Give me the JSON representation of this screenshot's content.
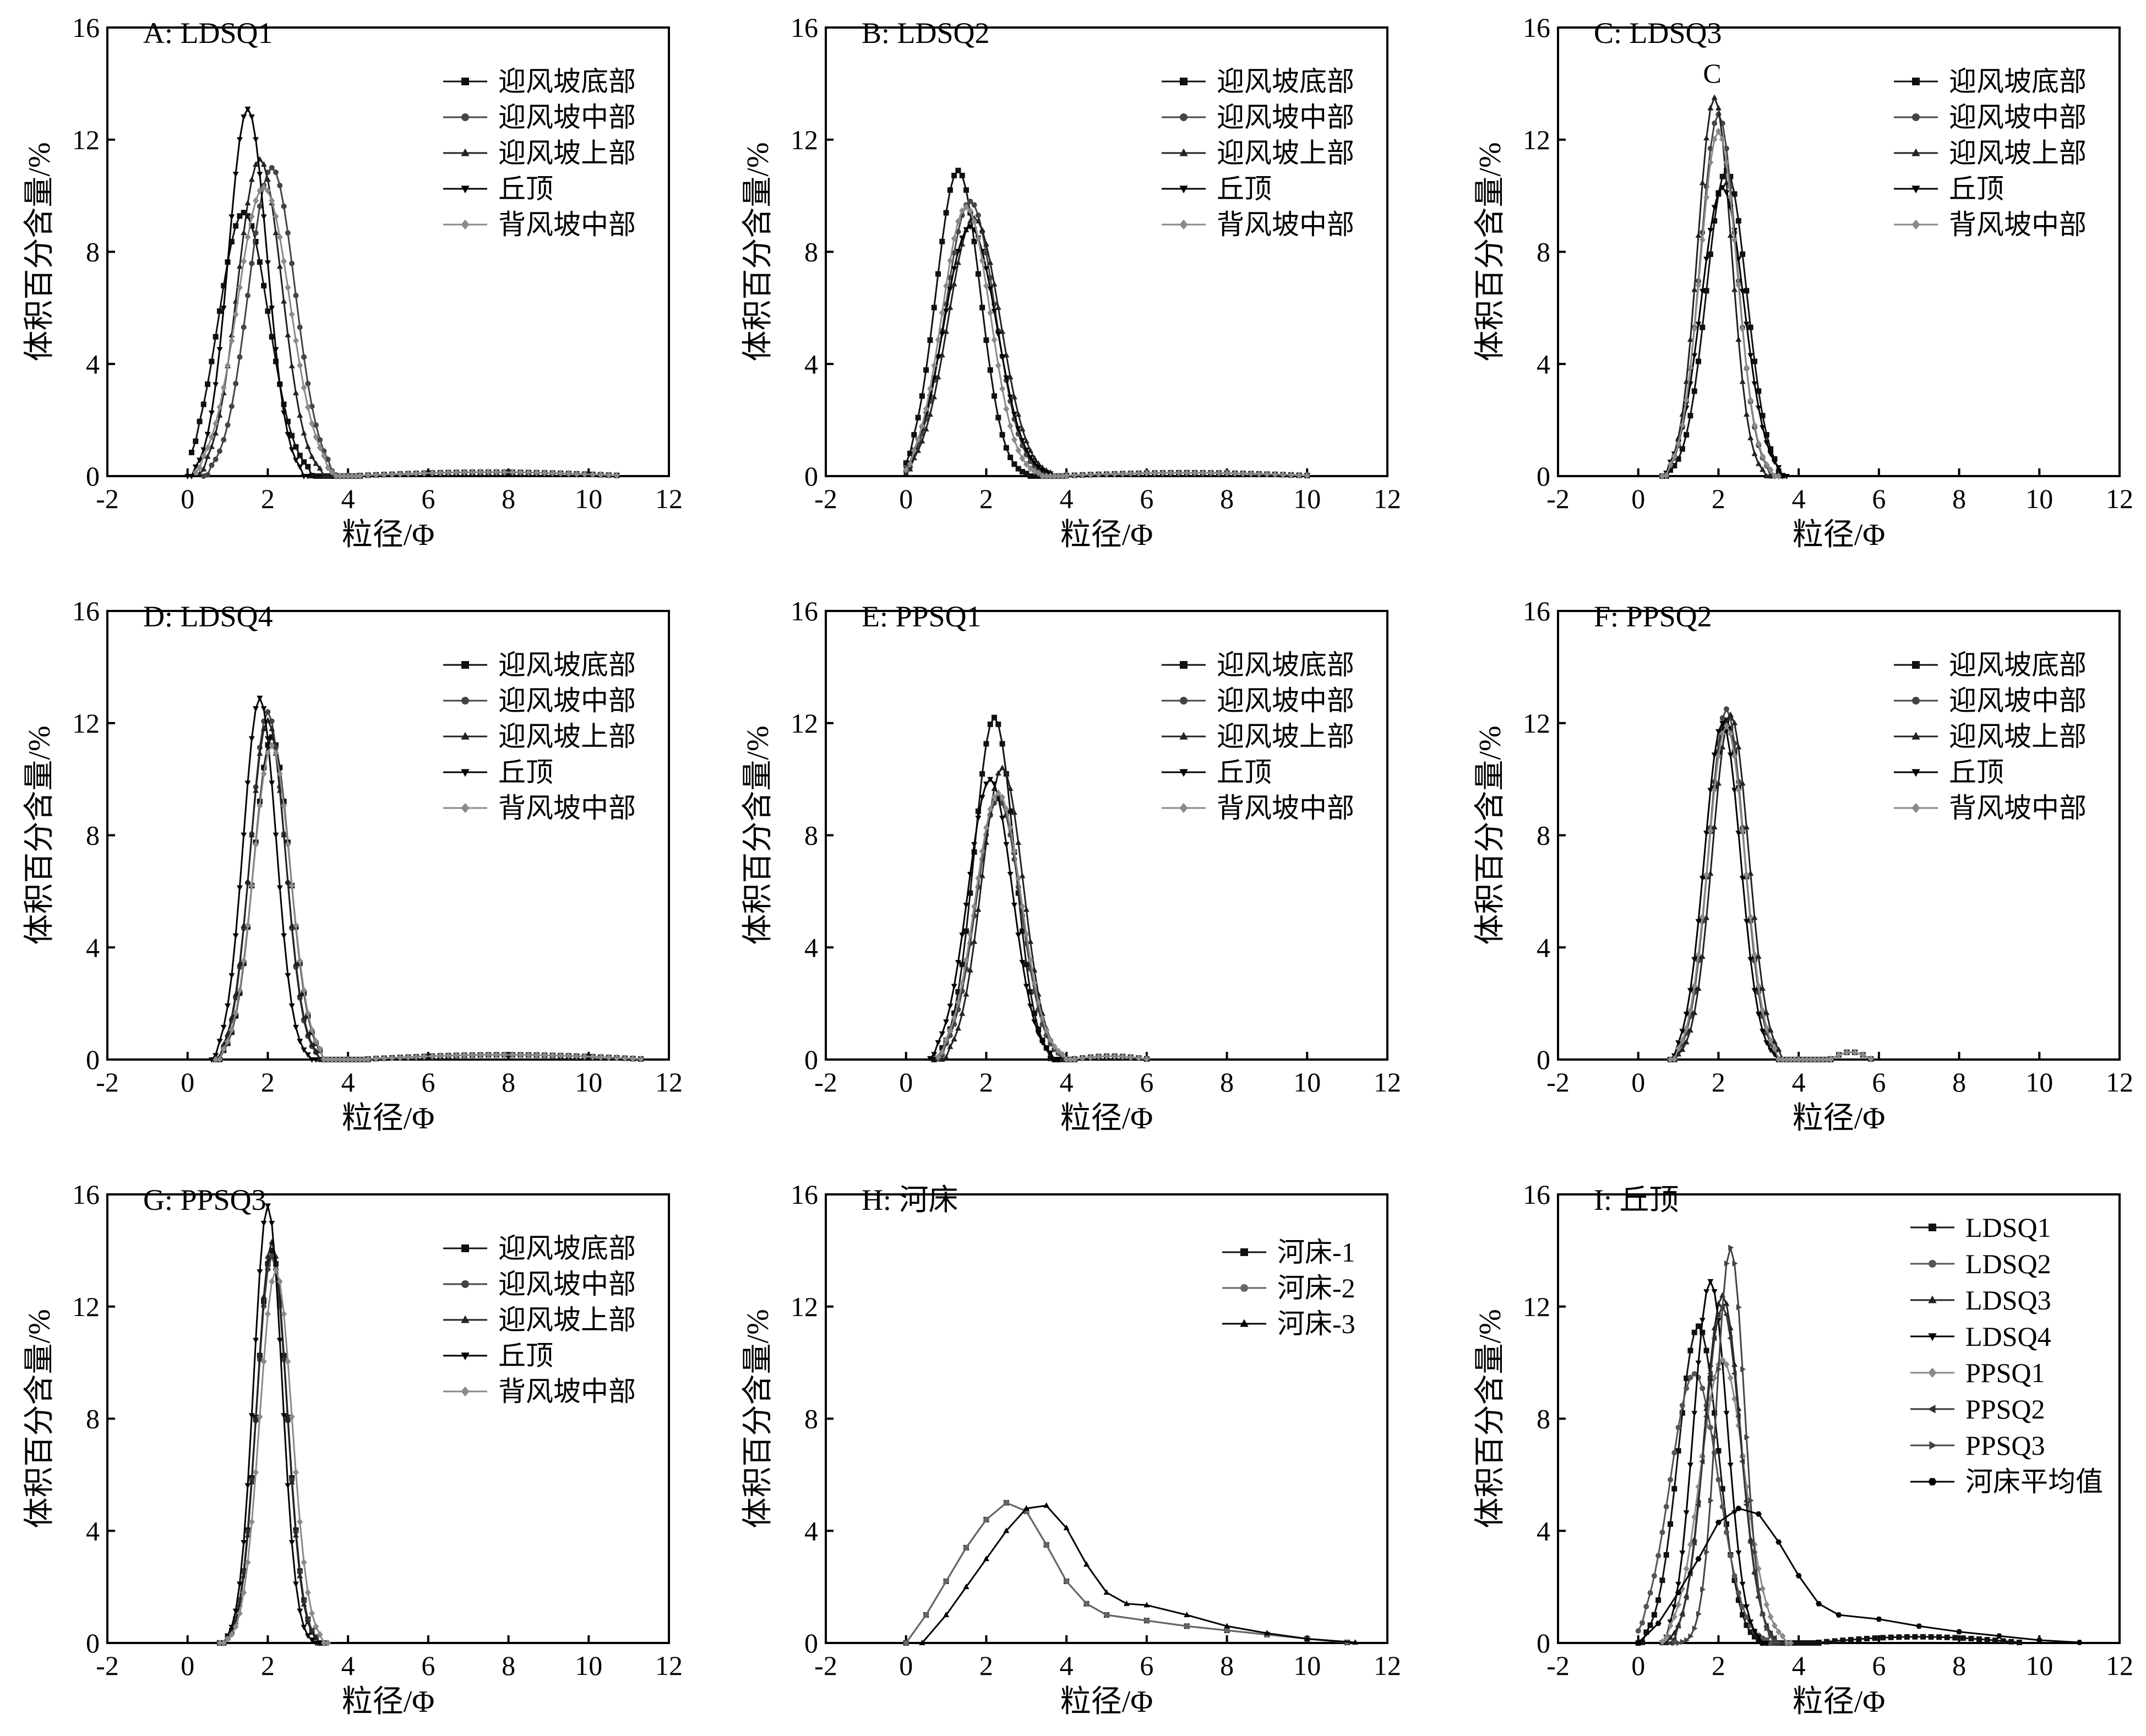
{
  "figure": {
    "x_label": "粒径/Φ",
    "y_label": "体积百分含量/%"
  },
  "chart_data": [
    {
      "id": "A",
      "type": "line",
      "title": "A: LDSQ1",
      "note": "",
      "xlabel": "粒径/Φ",
      "ylabel": "体积百分含量/%",
      "xlim": [
        -2,
        12
      ],
      "ylim": [
        0,
        16
      ],
      "xticks": [
        -2,
        0,
        2,
        4,
        6,
        8,
        10,
        12
      ],
      "yticks": [
        0,
        4,
        8,
        12,
        16
      ],
      "legend_position": "top-right",
      "series": [
        {
          "name": "迎风坡底部",
          "color": "#111111",
          "marker": "square",
          "mu": 1.4,
          "sigma": 0.62,
          "peak": 9.4,
          "xmin": 0.1,
          "xmax": 3.2
        },
        {
          "name": "迎风坡中部",
          "color": "#444444",
          "marker": "circle",
          "mu": 2.1,
          "sigma": 0.58,
          "peak": 11.0,
          "xmin": 0.4,
          "xmax": 3.7
        },
        {
          "name": "迎风坡上部",
          "color": "#222222",
          "marker": "triangle-up",
          "mu": 1.8,
          "sigma": 0.55,
          "peak": 11.3,
          "xmin": 0.3,
          "xmax": 3.5
        },
        {
          "name": "丘顶",
          "color": "#000000",
          "marker": "triangle-down",
          "mu": 1.5,
          "sigma": 0.48,
          "peak": 13.1,
          "xmin": 0.0,
          "xmax": 3.0
        },
        {
          "name": "背风坡中部",
          "color": "#8a8a8a",
          "marker": "diamond",
          "mu": 1.9,
          "sigma": 0.65,
          "peak": 10.3,
          "xmin": 0.2,
          "xmax": 3.6
        }
      ],
      "tail": {
        "xmin": 4.3,
        "xmax": 10.8,
        "level": 0.12
      }
    },
    {
      "id": "B",
      "type": "line",
      "title": "B: LDSQ2",
      "note": "",
      "xlabel": "粒径/Φ",
      "ylabel": "体积百分含量/%",
      "xlim": [
        -2,
        12
      ],
      "ylim": [
        0,
        16
      ],
      "xticks": [
        -2,
        0,
        2,
        4,
        6,
        8,
        10,
        12
      ],
      "yticks": [
        0,
        4,
        8,
        12,
        16
      ],
      "legend_position": "top-right",
      "series": [
        {
          "name": "迎风坡底部",
          "color": "#111111",
          "marker": "square",
          "mu": 1.3,
          "sigma": 0.55,
          "peak": 10.9,
          "xmin": 0.0,
          "xmax": 3.2
        },
        {
          "name": "迎风坡中部",
          "color": "#444444",
          "marker": "circle",
          "mu": 1.6,
          "sigma": 0.62,
          "peak": 9.8,
          "xmin": 0.0,
          "xmax": 3.6
        },
        {
          "name": "迎风坡上部",
          "color": "#222222",
          "marker": "triangle-up",
          "mu": 1.7,
          "sigma": 0.65,
          "peak": 9.2,
          "xmin": 0.0,
          "xmax": 3.8
        },
        {
          "name": "丘顶",
          "color": "#000000",
          "marker": "triangle-down",
          "mu": 1.6,
          "sigma": 0.66,
          "peak": 8.9,
          "xmin": 0.0,
          "xmax": 3.8
        },
        {
          "name": "背风坡中部",
          "color": "#8a8a8a",
          "marker": "diamond",
          "mu": 1.5,
          "sigma": 0.6,
          "peak": 9.6,
          "xmin": 0.0,
          "xmax": 3.5
        }
      ],
      "tail": {
        "xmin": 4.0,
        "xmax": 10.0,
        "level": 0.1
      }
    },
    {
      "id": "C",
      "type": "line",
      "title": "C: LDSQ3",
      "note": "C",
      "xlabel": "粒径/Φ",
      "ylabel": "体积百分含量/%",
      "xlim": [
        -2,
        12
      ],
      "ylim": [
        0,
        16
      ],
      "xticks": [
        -2,
        0,
        2,
        4,
        6,
        8,
        10,
        12
      ],
      "yticks": [
        0,
        4,
        8,
        12,
        16
      ],
      "legend_position": "top-right",
      "series": [
        {
          "name": "迎风坡底部",
          "color": "#111111",
          "marker": "square",
          "mu": 2.2,
          "sigma": 0.5,
          "peak": 10.9,
          "xmin": 0.6,
          "xmax": 3.6
        },
        {
          "name": "迎风坡中部",
          "color": "#444444",
          "marker": "circle",
          "mu": 2.0,
          "sigma": 0.45,
          "peak": 12.9,
          "xmin": 0.6,
          "xmax": 3.4
        },
        {
          "name": "迎风坡上部",
          "color": "#222222",
          "marker": "triangle-up",
          "mu": 1.9,
          "sigma": 0.42,
          "peak": 13.5,
          "xmin": 0.6,
          "xmax": 3.3
        },
        {
          "name": "丘顶",
          "color": "#000000",
          "marker": "triangle-down",
          "mu": 2.1,
          "sigma": 0.53,
          "peak": 10.3,
          "xmin": 0.6,
          "xmax": 3.7
        },
        {
          "name": "背风坡中部",
          "color": "#8a8a8a",
          "marker": "diamond",
          "mu": 2.0,
          "sigma": 0.46,
          "peak": 12.3,
          "xmin": 0.6,
          "xmax": 3.5
        }
      ],
      "tail": null
    },
    {
      "id": "D",
      "type": "line",
      "title": "D: LDSQ4",
      "note": "",
      "xlabel": "粒径/Φ",
      "ylabel": "体积百分含量/%",
      "xlim": [
        -2,
        12
      ],
      "ylim": [
        0,
        16
      ],
      "xticks": [
        -2,
        0,
        2,
        4,
        6,
        8,
        10,
        12
      ],
      "yticks": [
        0,
        4,
        8,
        12,
        16
      ],
      "legend_position": "top-right",
      "series": [
        {
          "name": "迎风坡底部",
          "color": "#111111",
          "marker": "square",
          "mu": 2.1,
          "sigma": 0.45,
          "peak": 11.5,
          "xmin": 0.7,
          "xmax": 3.5
        },
        {
          "name": "迎风坡中部",
          "color": "#444444",
          "marker": "circle",
          "mu": 2.0,
          "sigma": 0.43,
          "peak": 12.4,
          "xmin": 0.7,
          "xmax": 3.4
        },
        {
          "name": "迎风坡上部",
          "color": "#222222",
          "marker": "triangle-up",
          "mu": 2.0,
          "sigma": 0.44,
          "peak": 12.1,
          "xmin": 0.7,
          "xmax": 3.4
        },
        {
          "name": "丘顶",
          "color": "#000000",
          "marker": "triangle-down",
          "mu": 1.8,
          "sigma": 0.41,
          "peak": 12.9,
          "xmin": 0.6,
          "xmax": 3.2
        },
        {
          "name": "背风坡中部",
          "color": "#8a8a8a",
          "marker": "diamond",
          "mu": 2.1,
          "sigma": 0.46,
          "peak": 11.2,
          "xmin": 0.7,
          "xmax": 3.5
        }
      ],
      "tail": {
        "xmin": 4.5,
        "xmax": 11.3,
        "level": 0.15
      }
    },
    {
      "id": "E",
      "type": "line",
      "title": "E: PPSQ1",
      "note": "",
      "xlabel": "粒径/Φ",
      "ylabel": "体积百分含量/%",
      "xlim": [
        -2,
        12
      ],
      "ylim": [
        0,
        16
      ],
      "xticks": [
        -2,
        0,
        2,
        4,
        6,
        8,
        10,
        12
      ],
      "yticks": [
        0,
        4,
        8,
        12,
        16
      ],
      "legend_position": "top-right",
      "series": [
        {
          "name": "迎风坡底部",
          "color": "#111111",
          "marker": "square",
          "mu": 2.2,
          "sigma": 0.5,
          "peak": 12.2,
          "xmin": 0.7,
          "xmax": 3.7
        },
        {
          "name": "迎风坡中部",
          "color": "#444444",
          "marker": "circle",
          "mu": 2.3,
          "sigma": 0.55,
          "peak": 9.3,
          "xmin": 0.8,
          "xmax": 4.0
        },
        {
          "name": "迎风坡上部",
          "color": "#222222",
          "marker": "triangle-up",
          "mu": 2.4,
          "sigma": 0.52,
          "peak": 10.4,
          "xmin": 0.9,
          "xmax": 4.0
        },
        {
          "name": "丘顶",
          "color": "#000000",
          "marker": "triangle-down",
          "mu": 2.1,
          "sigma": 0.55,
          "peak": 10.0,
          "xmin": 0.6,
          "xmax": 3.8
        },
        {
          "name": "背风坡中部",
          "color": "#8a8a8a",
          "marker": "diamond",
          "mu": 2.3,
          "sigma": 0.57,
          "peak": 9.5,
          "xmin": 0.8,
          "xmax": 4.1
        }
      ],
      "tail": {
        "xmin": 4.2,
        "xmax": 6.0,
        "level": 0.1
      }
    },
    {
      "id": "F",
      "type": "line",
      "title": "F: PPSQ2",
      "note": "",
      "xlabel": "粒径/Φ",
      "ylabel": "体积百分含量/%",
      "xlim": [
        -2,
        12
      ],
      "ylim": [
        0,
        16
      ],
      "xticks": [
        -2,
        0,
        2,
        4,
        6,
        8,
        10,
        12
      ],
      "yticks": [
        0,
        4,
        8,
        12,
        16
      ],
      "legend_position": "top-right",
      "series": [
        {
          "name": "迎风坡底部",
          "color": "#111111",
          "marker": "square",
          "mu": 2.2,
          "sigma": 0.45,
          "peak": 12.1,
          "xmin": 0.8,
          "xmax": 3.6
        },
        {
          "name": "迎风坡中部",
          "color": "#444444",
          "marker": "circle",
          "mu": 2.2,
          "sigma": 0.44,
          "peak": 12.5,
          "xmin": 0.8,
          "xmax": 3.6
        },
        {
          "name": "迎风坡上部",
          "color": "#222222",
          "marker": "triangle-up",
          "mu": 2.3,
          "sigma": 0.45,
          "peak": 12.3,
          "xmin": 0.8,
          "xmax": 3.7
        },
        {
          "name": "丘顶",
          "color": "#000000",
          "marker": "triangle-down",
          "mu": 2.1,
          "sigma": 0.45,
          "peak": 12.0,
          "xmin": 0.8,
          "xmax": 3.6
        },
        {
          "name": "背风坡中部",
          "color": "#8a8a8a",
          "marker": "diamond",
          "mu": 2.2,
          "sigma": 0.46,
          "peak": 11.9,
          "xmin": 0.8,
          "xmax": 3.6
        }
      ],
      "tail": {
        "xmin": 4.8,
        "xmax": 5.8,
        "level": 0.25
      }
    },
    {
      "id": "G",
      "type": "line",
      "title": "G: PPSQ3",
      "note": "",
      "xlabel": "粒径/Φ",
      "ylabel": "体积百分含量/%",
      "xlim": [
        -2,
        12
      ],
      "ylim": [
        0,
        16
      ],
      "xticks": [
        -2,
        0,
        2,
        4,
        6,
        8,
        10,
        12
      ],
      "yticks": [
        0,
        4,
        8,
        12,
        16
      ],
      "legend_position": "top-right",
      "series": [
        {
          "name": "迎风坡底部",
          "color": "#111111",
          "marker": "square",
          "mu": 2.1,
          "sigma": 0.38,
          "peak": 14.0,
          "xmin": 0.8,
          "xmax": 3.4
        },
        {
          "name": "迎风坡中部",
          "color": "#444444",
          "marker": "circle",
          "mu": 2.1,
          "sigma": 0.38,
          "peak": 13.8,
          "xmin": 0.8,
          "xmax": 3.4
        },
        {
          "name": "迎风坡上部",
          "color": "#222222",
          "marker": "triangle-up",
          "mu": 2.1,
          "sigma": 0.37,
          "peak": 14.3,
          "xmin": 0.8,
          "xmax": 3.4
        },
        {
          "name": "丘顶",
          "color": "#000000",
          "marker": "triangle-down",
          "mu": 2.0,
          "sigma": 0.35,
          "peak": 15.6,
          "xmin": 0.8,
          "xmax": 3.3
        },
        {
          "name": "背风坡中部",
          "color": "#8a8a8a",
          "marker": "diamond",
          "mu": 2.2,
          "sigma": 0.4,
          "peak": 13.3,
          "xmin": 0.8,
          "xmax": 3.5
        }
      ],
      "tail": null
    },
    {
      "id": "H",
      "type": "line",
      "title": "H: 河床",
      "note": "",
      "xlabel": "粒径/Φ",
      "ylabel": "体积百分含量/%",
      "xlim": [
        -2,
        12
      ],
      "ylim": [
        0,
        16
      ],
      "xticks": [
        -2,
        0,
        2,
        4,
        6,
        8,
        10,
        12
      ],
      "yticks": [
        0,
        4,
        8,
        12,
        16
      ],
      "legend_position": "top-right",
      "series": [
        {
          "name": "河床-1",
          "color": "#111111",
          "marker": "square",
          "points": [
            [
              0.0,
              0.0
            ],
            [
              0.5,
              1.0
            ],
            [
              1.0,
              2.2
            ],
            [
              1.5,
              3.4
            ],
            [
              2.0,
              4.4
            ],
            [
              2.5,
              5.0
            ],
            [
              3.0,
              4.7
            ],
            [
              3.5,
              3.5
            ],
            [
              4.0,
              2.2
            ],
            [
              4.5,
              1.4
            ],
            [
              5.0,
              1.0
            ],
            [
              6.0,
              0.8
            ],
            [
              7.0,
              0.6
            ],
            [
              8.0,
              0.45
            ],
            [
              9.0,
              0.3
            ],
            [
              10.0,
              0.15
            ],
            [
              11.0,
              0.02
            ]
          ]
        },
        {
          "name": "河床-2",
          "color": "#666666",
          "marker": "circle",
          "points": [
            [
              0.0,
              0.0
            ],
            [
              0.5,
              1.0
            ],
            [
              1.0,
              2.2
            ],
            [
              1.5,
              3.4
            ],
            [
              2.0,
              4.4
            ],
            [
              2.5,
              5.0
            ],
            [
              3.0,
              4.7
            ],
            [
              3.5,
              3.5
            ],
            [
              4.0,
              2.2
            ],
            [
              4.5,
              1.4
            ],
            [
              5.0,
              1.0
            ],
            [
              6.0,
              0.8
            ],
            [
              7.0,
              0.6
            ],
            [
              8.0,
              0.45
            ],
            [
              9.0,
              0.3
            ],
            [
              10.0,
              0.15
            ],
            [
              11.0,
              0.02
            ]
          ]
        },
        {
          "name": "河床-3",
          "color": "#000000",
          "marker": "triangle-up",
          "points": [
            [
              0.4,
              0.0
            ],
            [
              1.0,
              1.0
            ],
            [
              1.5,
              2.0
            ],
            [
              2.0,
              3.0
            ],
            [
              2.5,
              4.0
            ],
            [
              3.0,
              4.8
            ],
            [
              3.5,
              4.9
            ],
            [
              4.0,
              4.1
            ],
            [
              4.5,
              2.8
            ],
            [
              5.0,
              1.8
            ],
            [
              5.5,
              1.4
            ],
            [
              6.0,
              1.35
            ],
            [
              7.0,
              1.0
            ],
            [
              8.0,
              0.6
            ],
            [
              9.0,
              0.35
            ],
            [
              10.0,
              0.15
            ],
            [
              11.2,
              0.02
            ]
          ]
        }
      ],
      "tail": null
    },
    {
      "id": "I",
      "type": "line",
      "title": "I: 丘顶",
      "note": "",
      "xlabel": "粒径/Φ",
      "ylabel": "体积百分含量/%",
      "xlim": [
        -2,
        12
      ],
      "ylim": [
        0,
        16
      ],
      "xticks": [
        -2,
        0,
        2,
        4,
        6,
        8,
        10,
        12
      ],
      "yticks": [
        0,
        4,
        8,
        12,
        16
      ],
      "legend_position": "top-right",
      "series": [
        {
          "name": "LDSQ1",
          "color": "#111111",
          "marker": "square",
          "mu": 1.5,
          "sigma": 0.5,
          "peak": 11.3,
          "xmin": 0.0,
          "xmax": 3.2
        },
        {
          "name": "LDSQ2",
          "color": "#555555",
          "marker": "circle",
          "mu": 1.4,
          "sigma": 0.6,
          "peak": 9.6,
          "xmin": 0.0,
          "xmax": 3.4
        },
        {
          "name": "LDSQ3",
          "color": "#222222",
          "marker": "triangle-up",
          "mu": 2.1,
          "sigma": 0.45,
          "peak": 12.4,
          "xmin": 0.6,
          "xmax": 3.5
        },
        {
          "name": "LDSQ4",
          "color": "#000000",
          "marker": "triangle-down",
          "mu": 1.8,
          "sigma": 0.42,
          "peak": 12.9,
          "xmin": 0.6,
          "xmax": 3.2
        },
        {
          "name": "PPSQ1",
          "color": "#8a8a8a",
          "marker": "diamond",
          "mu": 2.1,
          "sigma": 0.55,
          "peak": 10.1,
          "xmin": 0.6,
          "xmax": 3.8
        },
        {
          "name": "PPSQ2",
          "color": "#333333",
          "marker": "triangle-left",
          "mu": 2.1,
          "sigma": 0.45,
          "peak": 12.0,
          "xmin": 0.8,
          "xmax": 3.6
        },
        {
          "name": "PPSQ3",
          "color": "#444444",
          "marker": "triangle-right",
          "mu": 2.3,
          "sigma": 0.35,
          "peak": 14.1,
          "xmin": 0.9,
          "xmax": 3.5
        },
        {
          "name": "河床平均值",
          "color": "#000000",
          "marker": "hexagon",
          "points": [
            [
              0.0,
              0.0
            ],
            [
              0.5,
              0.7
            ],
            [
              1.0,
              1.8
            ],
            [
              1.5,
              3.0
            ],
            [
              2.0,
              4.3
            ],
            [
              2.5,
              4.8
            ],
            [
              3.0,
              4.6
            ],
            [
              3.5,
              3.6
            ],
            [
              4.0,
              2.4
            ],
            [
              4.5,
              1.4
            ],
            [
              5.0,
              1.0
            ],
            [
              6.0,
              0.85
            ],
            [
              7.0,
              0.6
            ],
            [
              8.0,
              0.4
            ],
            [
              9.0,
              0.25
            ],
            [
              10.0,
              0.1
            ],
            [
              11.0,
              0.02
            ]
          ]
        }
      ],
      "tail": {
        "xmin": 4.5,
        "xmax": 9.5,
        "level": 0.2
      }
    }
  ]
}
